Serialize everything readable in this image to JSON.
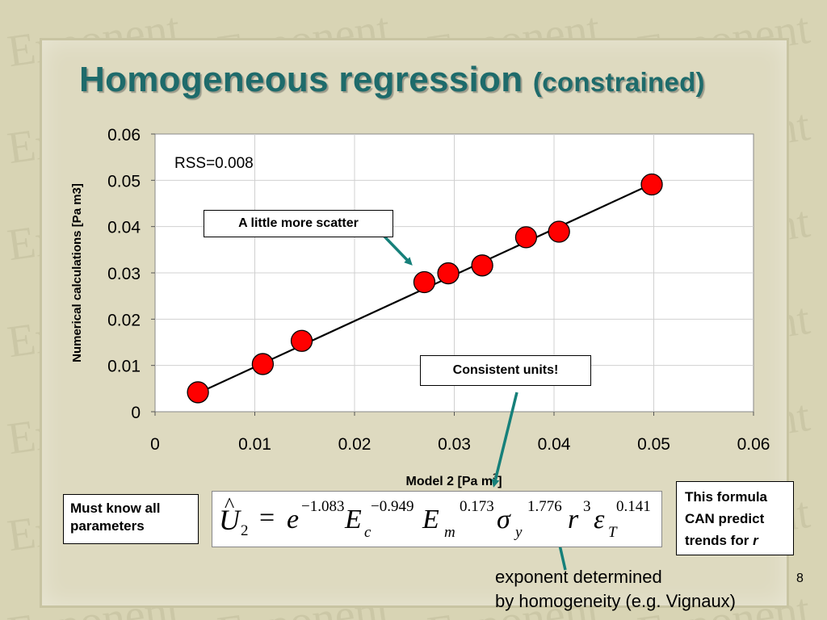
{
  "slide": {
    "title_main": "Homogeneous regression",
    "title_sub": "(constrained)",
    "page_number": "8",
    "background_color": "#d8d4b4",
    "watermark_text": "Exponent"
  },
  "chart_data": {
    "type": "scatter",
    "x": [
      0.0043,
      0.0108,
      0.0147,
      0.027,
      0.0294,
      0.0328,
      0.0372,
      0.0405,
      0.0498
    ],
    "y": [
      0.0042,
      0.0103,
      0.0153,
      0.028,
      0.0299,
      0.0316,
      0.0377,
      0.0389,
      0.0491
    ],
    "fit_line": {
      "x": [
        0.0043,
        0.0498
      ],
      "y": [
        0.004,
        0.0492
      ]
    },
    "xlabel": "Model 2 [Pa m3]",
    "ylabel": "Numerical calculations [Pa m3]",
    "xlim": [
      0,
      0.06
    ],
    "ylim": [
      0,
      0.06
    ],
    "xticks": [
      "0",
      "0.01",
      "0.02",
      "0.03",
      "0.04",
      "0.05",
      "0.06"
    ],
    "yticks": [
      "0",
      "0.01",
      "0.02",
      "0.03",
      "0.04",
      "0.05",
      "0.06"
    ],
    "annotation": "RSS=0.008",
    "grid": true,
    "marker_color": "#ff0000",
    "line_color": "#000000"
  },
  "callouts": {
    "scatter": "A little more scatter",
    "units": "Consistent units!",
    "must_know": "Must know all parameters",
    "formula_note_1": "This formula",
    "formula_note_2": "CAN predict",
    "formula_note_3": "trends for",
    "formula_note_var": "r",
    "exponent_line1": "exponent determined",
    "exponent_line2": "by homogeneity (e.g. Vignaux)",
    "arrow_color": "#16807a"
  },
  "formula": {
    "lhs": "U",
    "lhs_hat": "^",
    "lhs_sub": "2",
    "eq": "=",
    "e": "e",
    "e_exp": "−1.083",
    "Ec": "E",
    "Ec_sub": "c",
    "Ec_exp": "−0.949",
    "Em": "E",
    "Em_sub": "m",
    "Em_exp": "0.173",
    "sigma": "σ",
    "sigma_sub": "y",
    "sigma_exp": "1.776",
    "r": "r",
    "r_exp": "3",
    "eps": "ε",
    "eps_sub": "T",
    "eps_exp": "0.141"
  }
}
